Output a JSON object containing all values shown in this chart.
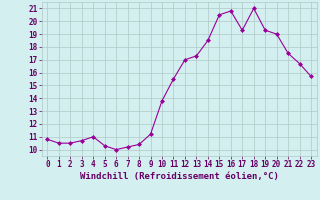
{
  "x": [
    0,
    1,
    2,
    3,
    4,
    5,
    6,
    7,
    8,
    9,
    10,
    11,
    12,
    13,
    14,
    15,
    16,
    17,
    18,
    19,
    20,
    21,
    22,
    23
  ],
  "y": [
    10.8,
    10.5,
    10.5,
    10.7,
    11.0,
    10.3,
    10.0,
    10.2,
    10.4,
    11.2,
    13.8,
    15.5,
    17.0,
    17.3,
    18.5,
    20.5,
    20.8,
    19.3,
    21.0,
    19.3,
    19.0,
    17.5,
    16.7,
    15.7
  ],
  "line_color": "#990099",
  "marker": "D",
  "marker_size": 2.0,
  "bg_color": "#d4efef",
  "grid_color": "#b0c8c8",
  "xlabel": "Windchill (Refroidissement éolien,°C)",
  "xlim": [
    -0.5,
    23.5
  ],
  "ylim": [
    9.5,
    21.5
  ],
  "yticks": [
    10,
    11,
    12,
    13,
    14,
    15,
    16,
    17,
    18,
    19,
    20,
    21
  ],
  "xticks": [
    0,
    1,
    2,
    3,
    4,
    5,
    6,
    7,
    8,
    9,
    10,
    11,
    12,
    13,
    14,
    15,
    16,
    17,
    18,
    19,
    20,
    21,
    22,
    23
  ],
  "tick_fontsize": 5.5,
  "xlabel_fontsize": 6.5,
  "label_color": "#660066",
  "linewidth": 0.8
}
